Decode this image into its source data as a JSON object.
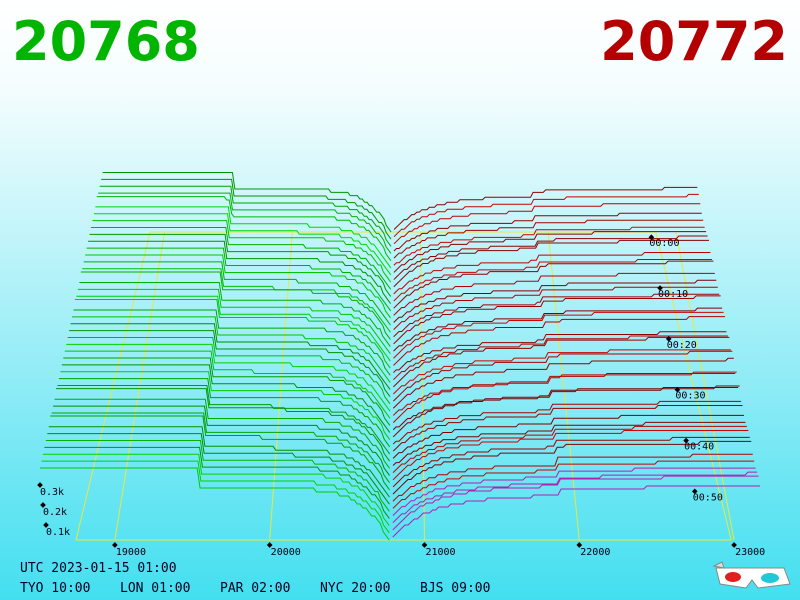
{
  "header": {
    "bid_price": "20768",
    "ask_price": "20772"
  },
  "price_axis": [
    "19000",
    "20000",
    "21000",
    "22000",
    "23000"
  ],
  "time_axis": [
    "00:00",
    "00:10",
    "00:20",
    "00:30",
    "00:40",
    "00:50"
  ],
  "depth_axis": [
    "0.3k",
    "0.2k",
    "0.1k"
  ],
  "clock": {
    "utc": "UTC 2023-01-15 01:00",
    "cities": [
      "TYO 10:00",
      "LON 01:00",
      "PAR 02:00",
      "NYC 20:00",
      "BJS 09:00"
    ]
  }
}
